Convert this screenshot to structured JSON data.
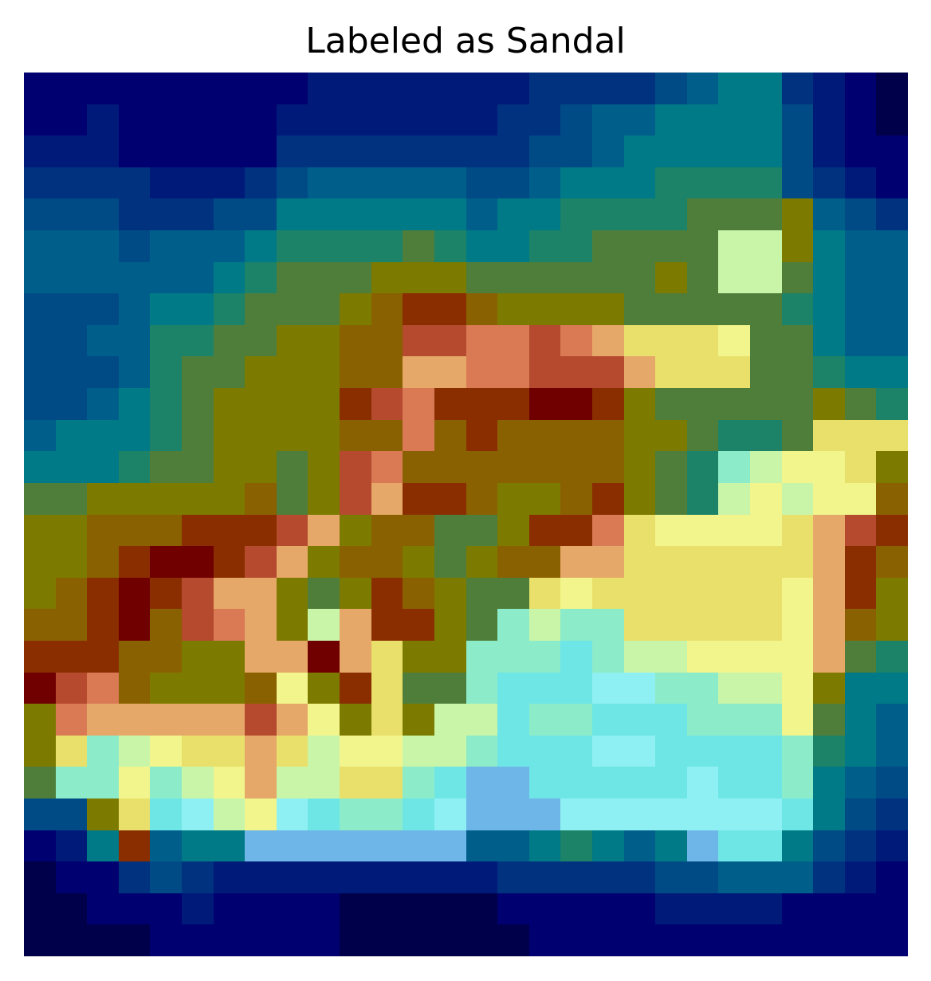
{
  "title": "Labeled as Sandal",
  "palette": [
    "#00004a",
    "#000070",
    "#001a7a",
    "#00327f",
    "#004b86",
    "#005f8a",
    "#007a86",
    "#1c8268",
    "#4f7e3a",
    "#7d7a00",
    "#8a6100",
    "#8a2e00",
    "#700000",
    "#b54a2e",
    "#d97a55",
    "#e6a868",
    "#e8e06a",
    "#f1f58c",
    "#c9f5a9",
    "#8cebc8",
    "#6ee6e6",
    "#8ef0f2",
    "#6fb6e8"
  ],
  "grid": [
    [
      1,
      1,
      1,
      1,
      1,
      1,
      1,
      1,
      1,
      2,
      2,
      2,
      2,
      2,
      2,
      2,
      3,
      3,
      3,
      3,
      4,
      5,
      6,
      6,
      3,
      2,
      1,
      0
    ],
    [
      1,
      1,
      2,
      1,
      1,
      1,
      1,
      1,
      2,
      2,
      2,
      2,
      2,
      2,
      2,
      3,
      3,
      4,
      5,
      5,
      6,
      6,
      6,
      6,
      4,
      2,
      1,
      0
    ],
    [
      2,
      2,
      2,
      1,
      1,
      1,
      1,
      1,
      3,
      3,
      3,
      3,
      3,
      3,
      3,
      3,
      4,
      4,
      5,
      6,
      6,
      6,
      6,
      6,
      4,
      2,
      1,
      1
    ],
    [
      3,
      3,
      3,
      3,
      2,
      2,
      2,
      3,
      4,
      5,
      5,
      5,
      5,
      5,
      4,
      4,
      5,
      6,
      6,
      6,
      7,
      7,
      7,
      7,
      4,
      3,
      2,
      1
    ],
    [
      4,
      4,
      4,
      3,
      3,
      3,
      4,
      4,
      6,
      6,
      6,
      6,
      6,
      6,
      5,
      6,
      6,
      7,
      7,
      7,
      7,
      8,
      8,
      8,
      9,
      5,
      4,
      3
    ],
    [
      5,
      5,
      5,
      4,
      5,
      5,
      5,
      6,
      7,
      7,
      7,
      7,
      8,
      7,
      6,
      6,
      7,
      7,
      8,
      8,
      8,
      8,
      18,
      18,
      9,
      6,
      5,
      5
    ],
    [
      5,
      5,
      5,
      5,
      5,
      5,
      6,
      7,
      8,
      8,
      8,
      9,
      9,
      9,
      8,
      8,
      8,
      8,
      8,
      8,
      9,
      8,
      18,
      18,
      8,
      6,
      5,
      5
    ],
    [
      4,
      4,
      4,
      5,
      6,
      6,
      7,
      8,
      8,
      8,
      9,
      10,
      11,
      11,
      10,
      9,
      9,
      9,
      9,
      8,
      8,
      8,
      8,
      8,
      7,
      6,
      5,
      5
    ],
    [
      4,
      4,
      5,
      5,
      7,
      7,
      8,
      8,
      9,
      9,
      10,
      10,
      13,
      13,
      14,
      14,
      13,
      14,
      15,
      16,
      16,
      16,
      17,
      8,
      8,
      6,
      5,
      5
    ],
    [
      4,
      4,
      4,
      5,
      7,
      8,
      8,
      9,
      9,
      9,
      10,
      10,
      15,
      15,
      14,
      14,
      13,
      13,
      13,
      15,
      16,
      16,
      16,
      8,
      8,
      7,
      6,
      6
    ],
    [
      4,
      4,
      5,
      6,
      7,
      8,
      9,
      9,
      9,
      9,
      11,
      13,
      14,
      11,
      11,
      11,
      12,
      12,
      11,
      9,
      8,
      8,
      8,
      8,
      8,
      9,
      8,
      7
    ],
    [
      5,
      6,
      6,
      6,
      7,
      8,
      9,
      9,
      9,
      9,
      10,
      10,
      14,
      10,
      11,
      10,
      10,
      10,
      10,
      9,
      9,
      8,
      7,
      7,
      8,
      16,
      16,
      16
    ],
    [
      6,
      6,
      6,
      7,
      8,
      8,
      9,
      9,
      8,
      9,
      13,
      14,
      10,
      10,
      10,
      10,
      10,
      10,
      10,
      9,
      8,
      7,
      19,
      18,
      17,
      17,
      16,
      9
    ],
    [
      8,
      8,
      9,
      9,
      9,
      9,
      9,
      10,
      8,
      9,
      13,
      15,
      11,
      11,
      10,
      9,
      9,
      10,
      11,
      9,
      8,
      7,
      18,
      17,
      18,
      17,
      17,
      10
    ],
    [
      9,
      9,
      10,
      10,
      10,
      11,
      11,
      11,
      13,
      15,
      9,
      10,
      10,
      8,
      8,
      9,
      11,
      11,
      14,
      16,
      17,
      17,
      17,
      17,
      16,
      15,
      13,
      11
    ],
    [
      9,
      9,
      10,
      11,
      12,
      12,
      11,
      13,
      15,
      9,
      10,
      10,
      9,
      8,
      9,
      10,
      10,
      15,
      15,
      16,
      16,
      16,
      16,
      16,
      16,
      15,
      11,
      10
    ],
    [
      9,
      10,
      11,
      12,
      11,
      13,
      15,
      15,
      9,
      8,
      9,
      11,
      10,
      9,
      8,
      8,
      16,
      17,
      16,
      16,
      16,
      16,
      16,
      16,
      17,
      15,
      11,
      9
    ],
    [
      10,
      10,
      11,
      12,
      10,
      13,
      14,
      15,
      9,
      18,
      15,
      11,
      11,
      9,
      8,
      19,
      18,
      19,
      19,
      16,
      16,
      16,
      16,
      16,
      17,
      15,
      10,
      9
    ],
    [
      11,
      11,
      11,
      10,
      10,
      9,
      9,
      15,
      15,
      12,
      15,
      16,
      9,
      9,
      19,
      19,
      19,
      20,
      19,
      18,
      18,
      17,
      17,
      17,
      17,
      15,
      8,
      7
    ],
    [
      12,
      13,
      14,
      10,
      9,
      9,
      9,
      10,
      17,
      9,
      11,
      16,
      8,
      8,
      19,
      20,
      20,
      20,
      21,
      21,
      19,
      19,
      18,
      18,
      17,
      9,
      6,
      6
    ],
    [
      9,
      14,
      15,
      15,
      15,
      15,
      15,
      13,
      15,
      17,
      9,
      16,
      9,
      18,
      18,
      20,
      19,
      19,
      20,
      20,
      20,
      19,
      19,
      19,
      17,
      8,
      6,
      5
    ],
    [
      9,
      16,
      19,
      18,
      17,
      16,
      16,
      15,
      16,
      18,
      17,
      17,
      18,
      18,
      19,
      20,
      20,
      20,
      21,
      21,
      20,
      20,
      20,
      20,
      19,
      7,
      6,
      5
    ],
    [
      8,
      19,
      19,
      17,
      19,
      18,
      17,
      15,
      18,
      18,
      16,
      16,
      19,
      20,
      22,
      22,
      20,
      20,
      20,
      20,
      20,
      21,
      20,
      20,
      19,
      6,
      5,
      4
    ],
    [
      4,
      4,
      9,
      16,
      20,
      21,
      18,
      17,
      21,
      20,
      19,
      19,
      20,
      21,
      22,
      22,
      22,
      21,
      21,
      21,
      21,
      21,
      21,
      21,
      20,
      6,
      4,
      3
    ],
    [
      1,
      2,
      6,
      11,
      5,
      6,
      6,
      22,
      22,
      22,
      22,
      22,
      22,
      22,
      5,
      5,
      6,
      7,
      6,
      5,
      6,
      22,
      20,
      20,
      6,
      4,
      3,
      2
    ],
    [
      0,
      1,
      1,
      3,
      4,
      3,
      2,
      2,
      2,
      2,
      2,
      2,
      2,
      2,
      2,
      3,
      3,
      3,
      3,
      3,
      4,
      4,
      5,
      5,
      5,
      3,
      2,
      1
    ],
    [
      0,
      0,
      1,
      1,
      1,
      2,
      1,
      1,
      1,
      1,
      0,
      0,
      0,
      0,
      0,
      1,
      1,
      1,
      1,
      1,
      2,
      2,
      2,
      2,
      1,
      1,
      1,
      1
    ],
    [
      0,
      0,
      0,
      0,
      1,
      1,
      1,
      1,
      1,
      1,
      0,
      0,
      0,
      0,
      0,
      0,
      1,
      1,
      1,
      1,
      1,
      1,
      1,
      1,
      1,
      1,
      1,
      1
    ]
  ]
}
